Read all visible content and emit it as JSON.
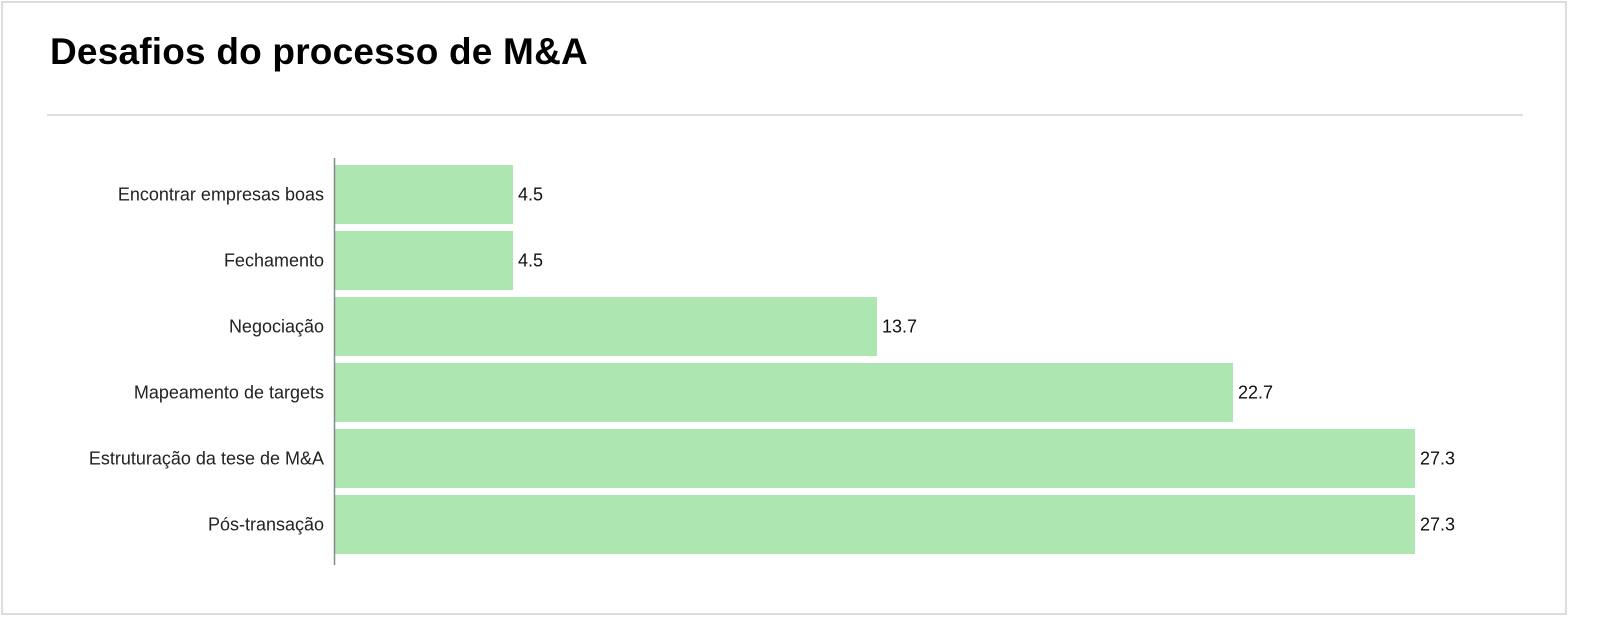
{
  "header": {
    "title": "Desafios do processo de M&A"
  },
  "colors": {
    "bar": "#ade6b0",
    "axis": "#888888",
    "divider": "#dedede",
    "border": "#dcdcdc"
  },
  "chart_data": {
    "type": "bar",
    "orientation": "horizontal",
    "title": "Desafios do processo de M&A",
    "xlabel": "",
    "ylabel": "",
    "grid": false,
    "legend": "none",
    "categories": [
      "Encontrar empresas boas",
      "Fechamento",
      "Negociação",
      "Mapeamento de targets",
      "Estruturação da tese de M&A",
      "Pós-transação"
    ],
    "values": [
      4.5,
      4.5,
      13.7,
      22.7,
      27.3,
      27.3
    ],
    "value_labels": [
      "4.5",
      "4.5",
      "13.7",
      "22.7",
      "27.3",
      "27.3"
    ],
    "xlim": [
      0,
      27.3
    ]
  }
}
